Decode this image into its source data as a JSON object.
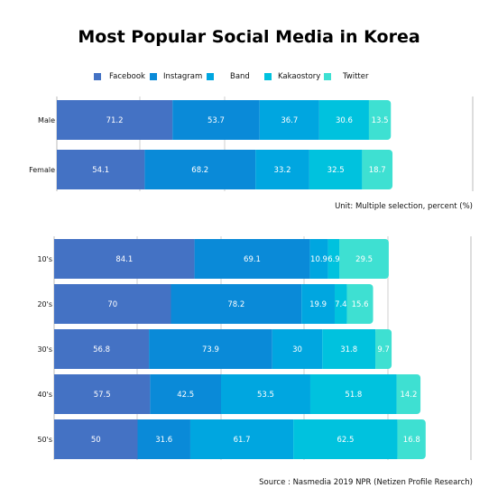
{
  "chart_data": [
    {
      "type": "bar",
      "stacked": true,
      "orientation": "horizontal",
      "title": "Most Popular Social Media in Korea",
      "categories": [
        "Male",
        "Female"
      ],
      "series": [
        {
          "name": "Facebook",
          "values": [
            71.2,
            54.1
          ]
        },
        {
          "name": "Instagram",
          "values": [
            53.7,
            68.2
          ]
        },
        {
          "name": "Band",
          "values": [
            36.7,
            33.2
          ]
        },
        {
          "name": "Kakaostory",
          "values": [
            30.6,
            32.5
          ]
        },
        {
          "name": "Twitter",
          "values": [
            13.5,
            18.7
          ]
        }
      ],
      "legend": "top",
      "grid": true
    },
    {
      "type": "bar",
      "stacked": true,
      "orientation": "horizontal",
      "categories": [
        "10's",
        "20's",
        "30's",
        "40's",
        "50's"
      ],
      "series": [
        {
          "name": "Facebook",
          "values": [
            84.1,
            70,
            56.8,
            57.5,
            50
          ]
        },
        {
          "name": "Instagram",
          "values": [
            69.1,
            78.2,
            73.9,
            42.5,
            31.6
          ]
        },
        {
          "name": "Band",
          "values": [
            10.9,
            19.9,
            30,
            53.5,
            61.7
          ]
        },
        {
          "name": "Kakaostory",
          "values": [
            6.9,
            7.4,
            31.8,
            51.8,
            62.5
          ]
        },
        {
          "name": "Twitter",
          "values": [
            29.5,
            15.6,
            9.7,
            14.2,
            16.8
          ]
        }
      ],
      "grid": true
    }
  ],
  "colors": {
    "Facebook": "#4472c4",
    "Instagram": "#0a8ad8",
    "Band": "#00a6e0",
    "Kakaostory": "#00c2de",
    "Twitter": "#3ee0d2"
  },
  "legend_items": [
    {
      "name": "Facebook"
    },
    {
      "name": "Instagram"
    },
    {
      "name": "Band"
    },
    {
      "name": "Kakaostory"
    },
    {
      "name": "Twitter"
    }
  ],
  "notes": {
    "unit": "Unit: Multiple selection, percent (%)",
    "source": "Source : Nasmedia 2019 NPR (Netizen Profile Research)"
  }
}
